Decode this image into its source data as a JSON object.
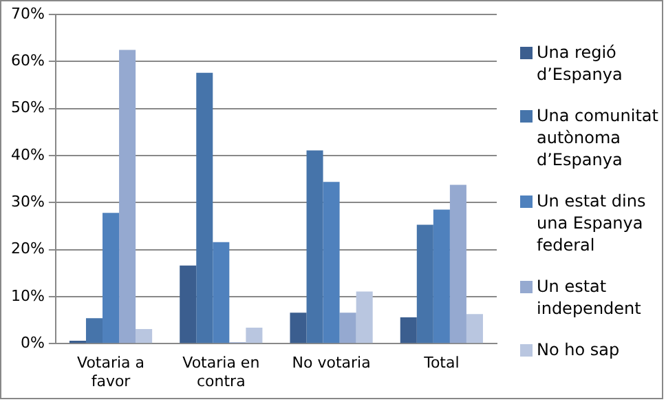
{
  "chart_data": {
    "type": "bar",
    "categories": [
      "Votaria a favor",
      "Votaria en contra",
      "No votaria",
      "Total"
    ],
    "series": [
      {
        "name": "Una regió d’Espanya",
        "color": "#3b5e8f",
        "values": [
          0.6,
          16.6,
          6.6,
          5.6
        ]
      },
      {
        "name": "Una comunitat autònoma d’Espanya",
        "color": "#4674aa",
        "values": [
          5.4,
          57.6,
          41.1,
          25.3
        ]
      },
      {
        "name": "Un estat dins una Espanya federal",
        "color": "#4f81bd",
        "values": [
          27.8,
          21.6,
          34.4,
          28.5
        ]
      },
      {
        "name": "Un estat independent",
        "color": "#95a9d0",
        "values": [
          62.5,
          0.3,
          6.6,
          33.8
        ]
      },
      {
        "name": "No ho sap",
        "color": "#b9c6e0",
        "values": [
          3.1,
          3.4,
          11.1,
          6.3
        ]
      }
    ],
    "ylim": [
      0,
      70
    ],
    "yticks": [
      {
        "value": 0,
        "label": "0%"
      },
      {
        "value": 10,
        "label": "10%"
      },
      {
        "value": 20,
        "label": "20%"
      },
      {
        "value": 30,
        "label": "30%"
      },
      {
        "value": 40,
        "label": "40%"
      },
      {
        "value": 50,
        "label": "50%"
      },
      {
        "value": 60,
        "label": "60%"
      },
      {
        "value": 70,
        "label": "70%"
      }
    ],
    "grid": "y",
    "legend": "right"
  }
}
